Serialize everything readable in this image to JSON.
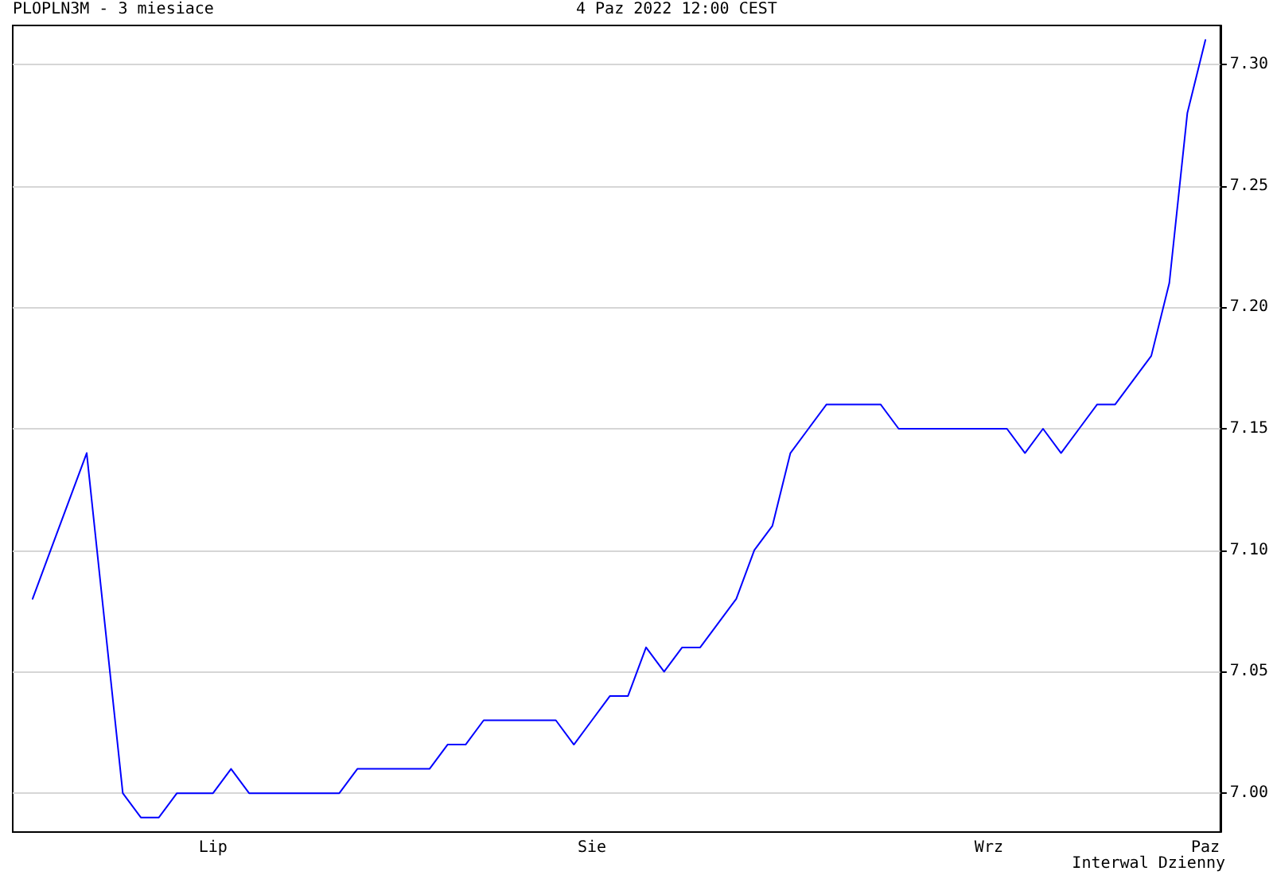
{
  "chart_data": {
    "type": "line",
    "title": "PLOPLN3M - 3 miesiace",
    "subtitle": "4 Paz 2022 12:00 CEST",
    "annotations": [
      "Interwal Dzienny"
    ],
    "categories": [
      null,
      null,
      null,
      null,
      null,
      null,
      null,
      null,
      null,
      null,
      "Lip",
      null,
      null,
      null,
      null,
      null,
      null,
      null,
      null,
      null,
      null,
      null,
      null,
      null,
      null,
      null,
      null,
      null,
      null,
      null,
      null,
      "Sie",
      null,
      null,
      null,
      null,
      null,
      null,
      null,
      null,
      null,
      null,
      null,
      null,
      null,
      null,
      null,
      null,
      null,
      null,
      null,
      null,
      null,
      "Wrz",
      null,
      null,
      null,
      null,
      null,
      null,
      null,
      null,
      null,
      null,
      null,
      "Paz"
    ],
    "series": [
      {
        "color": "#0000ff",
        "values": [
          7.08,
          7.1,
          7.12,
          7.14,
          7.07,
          7.0,
          6.99,
          6.99,
          7.0,
          7.0,
          7.0,
          7.01,
          7.0,
          7.0,
          7.0,
          7.0,
          7.0,
          7.0,
          7.01,
          7.01,
          7.01,
          7.01,
          7.01,
          7.02,
          7.02,
          7.03,
          7.03,
          7.03,
          7.03,
          7.03,
          7.02,
          7.03,
          7.04,
          7.04,
          7.06,
          7.05,
          7.06,
          7.06,
          7.07,
          7.08,
          7.1,
          7.11,
          7.14,
          7.15,
          7.16,
          7.16,
          7.16,
          7.16,
          7.15,
          7.15,
          7.15,
          7.15,
          7.15,
          7.15,
          7.15,
          7.14,
          7.15,
          7.14,
          7.15,
          7.16,
          7.16,
          7.17,
          7.18,
          7.21,
          7.28,
          7.31
        ]
      }
    ],
    "ylim": [
      6.984,
      7.316
    ],
    "yticks": [
      {
        "value": 7,
        "label": "7.00"
      },
      7.05,
      {
        "value": 7.1,
        "label": "7.10"
      },
      7.15,
      {
        "value": 7.2,
        "label": "7.20"
      },
      7.25,
      {
        "value": 7.3,
        "label": "7.30"
      }
    ],
    "grid": "y",
    "marker": "none",
    "line_style": "solid"
  }
}
